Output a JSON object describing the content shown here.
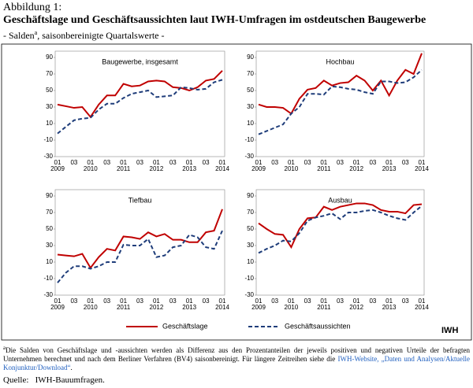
{
  "header": {
    "label": "Abbildung 1:",
    "title": "Geschäftslage und Geschäftsaussichten laut IWH-Umfragen im ostdeutschen Baugewerbe",
    "subtitle_pre": "- Salden",
    "subtitle_sup": "a",
    "subtitle_post": ", saisonbereinigte Quartalswerte -"
  },
  "chart_data": [
    {
      "type": "line",
      "title": "Baugewerbe, insgesamt",
      "categories": [
        "01",
        null,
        "03",
        null,
        "01",
        null,
        "03",
        null,
        "01",
        null,
        "03",
        null,
        "01",
        null,
        "03",
        null,
        "01",
        null,
        "03",
        null,
        "01"
      ],
      "years": [
        "2009",
        null,
        null,
        null,
        "2010",
        null,
        null,
        null,
        "2011",
        null,
        null,
        null,
        "2012",
        null,
        null,
        null,
        "2013",
        null,
        null,
        null,
        "2014"
      ],
      "series": [
        {
          "name": "Geschäftslage",
          "color": "#c00000",
          "dash": false,
          "values": [
            33,
            31,
            29,
            30,
            18,
            33,
            44,
            44,
            58,
            55,
            56,
            61,
            62,
            61,
            54,
            53,
            50,
            54,
            62,
            64,
            74
          ]
        },
        {
          "name": "Geschäftsaussichten",
          "color": "#1f3d7a",
          "dash": true,
          "values": [
            -2,
            6,
            14,
            16,
            17,
            27,
            34,
            34,
            41,
            46,
            48,
            50,
            42,
            43,
            44,
            54,
            53,
            51,
            52,
            60,
            63
          ]
        }
      ],
      "ylim": [
        -30,
        90
      ],
      "yticks": [
        -30,
        -10,
        10,
        30,
        50,
        70,
        90
      ]
    },
    {
      "type": "line",
      "title": "Hochbau",
      "categories": [
        "01",
        null,
        "03",
        null,
        "01",
        null,
        "03",
        null,
        "01",
        null,
        "03",
        null,
        "01",
        null,
        "03",
        null,
        "01",
        null,
        "03",
        null,
        "01"
      ],
      "years": [
        "2009",
        null,
        null,
        null,
        "2010",
        null,
        null,
        null,
        "2011",
        null,
        null,
        null,
        "2012",
        null,
        null,
        null,
        "2013",
        null,
        null,
        null,
        "2014"
      ],
      "series": [
        {
          "color": "#c00000",
          "dash": false,
          "values": [
            33,
            30,
            30,
            29,
            22,
            40,
            51,
            53,
            62,
            56,
            59,
            60,
            68,
            62,
            50,
            62,
            44,
            62,
            75,
            70,
            95
          ]
        },
        {
          "color": "#1f3d7a",
          "dash": true,
          "values": [
            -3,
            1,
            5,
            9,
            22,
            30,
            46,
            46,
            45,
            55,
            54,
            52,
            51,
            48,
            46,
            61,
            61,
            59,
            60,
            66,
            75
          ]
        }
      ],
      "ylim": [
        -30,
        90
      ],
      "yticks": [
        -30,
        -10,
        10,
        30,
        50,
        70,
        90
      ]
    },
    {
      "type": "line",
      "title": "Tiefbau",
      "categories": [
        "01",
        null,
        "03",
        null,
        "01",
        null,
        "03",
        null,
        "01",
        null,
        "03",
        null,
        "01",
        null,
        "03",
        null,
        "01",
        null,
        "03",
        null,
        "01"
      ],
      "years": [
        "2009",
        null,
        null,
        null,
        "2010",
        null,
        null,
        null,
        "2011",
        null,
        null,
        null,
        "2012",
        null,
        null,
        null,
        "2013",
        null,
        null,
        null,
        "2014"
      ],
      "series": [
        {
          "color": "#c00000",
          "dash": false,
          "values": [
            19,
            18,
            17,
            20,
            3,
            16,
            26,
            24,
            41,
            40,
            38,
            46,
            41,
            44,
            37,
            37,
            34,
            34,
            46,
            48,
            74
          ]
        },
        {
          "color": "#1f3d7a",
          "dash": true,
          "values": [
            -15,
            -3,
            5,
            5,
            2,
            5,
            10,
            10,
            31,
            30,
            30,
            38,
            16,
            18,
            28,
            30,
            43,
            40,
            28,
            26,
            48
          ]
        }
      ],
      "ylim": [
        -30,
        90
      ],
      "yticks": [
        -30,
        -10,
        10,
        30,
        50,
        70,
        90
      ]
    },
    {
      "type": "line",
      "title": "Ausbau",
      "categories": [
        "01",
        null,
        "03",
        null,
        "01",
        null,
        "03",
        null,
        "01",
        null,
        "03",
        null,
        "01",
        null,
        "03",
        null,
        "01",
        null,
        "03",
        null,
        "01"
      ],
      "years": [
        "2009",
        null,
        null,
        null,
        "2010",
        null,
        null,
        null,
        "2011",
        null,
        null,
        null,
        "2012",
        null,
        null,
        null,
        "2013",
        null,
        null,
        null,
        "2014"
      ],
      "series": [
        {
          "color": "#c00000",
          "dash": false,
          "values": [
            57,
            50,
            44,
            43,
            28,
            50,
            63,
            64,
            77,
            73,
            77,
            79,
            81,
            81,
            79,
            73,
            71,
            71,
            69,
            79,
            80
          ]
        },
        {
          "color": "#1f3d7a",
          "dash": true,
          "values": [
            21,
            26,
            30,
            36,
            35,
            45,
            60,
            64,
            66,
            69,
            62,
            70,
            70,
            72,
            73,
            70,
            66,
            63,
            61,
            70,
            78
          ]
        }
      ],
      "ylim": [
        -30,
        90
      ],
      "yticks": [
        -30,
        -10,
        10,
        30,
        50,
        70,
        90
      ]
    }
  ],
  "logo": "IWH",
  "footnote": {
    "marker": "a",
    "text": "Die Salden von Geschäftslage und -aussichten werden als Differenz aus den Prozentanteilen der jeweils positiven und negativen Urteile der befragten Unternehmen berechnet und nach dem Berliner Verfahren (BV4) saisonbereinigt. Für längere Zeitreihen siehe die ",
    "link": "IWH-Website, „Daten und Analysen/Aktuelle Konjunktur/Download“",
    "end": "."
  },
  "source": {
    "label": "Quelle:",
    "text": "IWH-Bauumfragen."
  }
}
